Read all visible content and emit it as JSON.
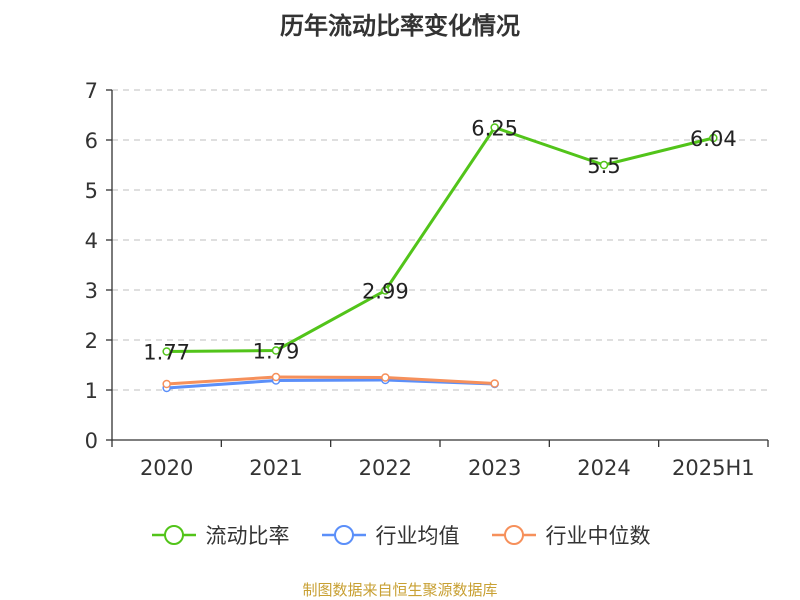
{
  "colors": {
    "primary": "#52c41a",
    "avg": "#5b8ff9",
    "median": "#f6905b",
    "source": "#c8a033",
    "text": "#333333",
    "grid": "#cccccc"
  },
  "footer": {
    "source": "制图数据来自恒生聚源数据库"
  },
  "chart_data": {
    "type": "line",
    "title": "历年流动比率变化情况",
    "xlabel": "",
    "ylabel": "",
    "categories": [
      "2020",
      "2021",
      "2022",
      "2023",
      "2024",
      "2025H1"
    ],
    "ylim": [
      0,
      7
    ],
    "yticks": [
      "0",
      "1",
      "2",
      "3",
      "4",
      "5",
      "6",
      "7"
    ],
    "grid": true,
    "legend_position": "bottom",
    "series": [
      {
        "name": "流动比率",
        "color": "#52c41a",
        "values": [
          1.77,
          1.79,
          2.99,
          6.25,
          5.5,
          6.04
        ],
        "labels": [
          "1.77",
          "1.79",
          "2.99",
          "6.25",
          "5.5",
          "6.04"
        ]
      },
      {
        "name": "行业均值",
        "color": "#5b8ff9",
        "values": [
          1.04,
          1.19,
          1.2,
          1.12,
          null,
          null
        ]
      },
      {
        "name": "行业中位数",
        "color": "#f6905b",
        "values": [
          1.12,
          1.26,
          1.25,
          1.13,
          null,
          null
        ]
      }
    ]
  }
}
